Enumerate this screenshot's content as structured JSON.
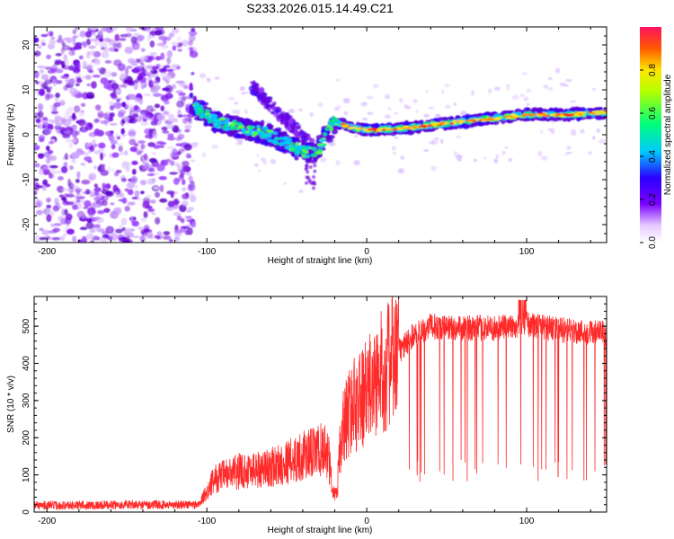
{
  "title": "S233.2026.015.14.49.C21",
  "chart_data": [
    {
      "type": "heatmap",
      "xlabel": "Height of straight line (km)",
      "ylabel": "Frequency (Hz)",
      "xlim": [
        -208,
        150
      ],
      "ylim": [
        -24,
        24
      ],
      "xticks": [
        -200,
        -100,
        0,
        100
      ],
      "xtick_labels": [
        "-200",
        "-100",
        "0",
        "100"
      ],
      "yticks": [
        -20,
        -10,
        0,
        10,
        20
      ],
      "ytick_labels": [
        "-20",
        "-10",
        "0",
        "10",
        "20"
      ],
      "colorbar": {
        "label": "Normalized spectral amplitude",
        "range": [
          0,
          1
        ],
        "ticks": [
          0,
          0.2,
          0.4,
          0.6,
          0.8
        ],
        "tick_labels": [
          "0.0",
          "0.2",
          "0.4",
          "0.6",
          "0.8"
        ]
      },
      "ridge": {
        "description_points_x": [
          -110,
          -95,
          -80,
          -65,
          -55,
          -45,
          -35,
          -30,
          -25,
          -20,
          -10,
          0,
          25,
          50,
          75,
          100,
          125,
          150
        ],
        "description_points_y": [
          7,
          3,
          1.5,
          0.5,
          -1,
          -3,
          -4,
          -3,
          0,
          3,
          1.5,
          1,
          1.5,
          2.5,
          3.5,
          4.5,
          4.5,
          5
        ]
      }
    },
    {
      "type": "line",
      "xlabel": "Height of straight line (km)",
      "ylabel": "SNR (10 * v/v)",
      "xlim": [
        -208,
        150
      ],
      "ylim": [
        0,
        580
      ],
      "xticks": [
        -200,
        -100,
        0,
        100
      ],
      "xtick_labels": [
        "-200",
        "-100",
        "0",
        "100"
      ],
      "yticks": [
        0,
        100,
        200,
        300,
        400,
        500
      ],
      "ytick_labels": [
        "0",
        "100",
        "200",
        "300",
        "400",
        "500"
      ],
      "series": [
        {
          "name": "SNR",
          "color": "#ff2a2a",
          "envelope_x": [
            -208,
            -105,
            -95,
            -80,
            -60,
            -40,
            -25,
            -20,
            -15,
            -10,
            0,
            10,
            20,
            30,
            40,
            60,
            80,
            100,
            120,
            150
          ],
          "envelope_mean": [
            18,
            20,
            90,
            110,
            120,
            150,
            170,
            50,
            230,
            280,
            320,
            380,
            430,
            480,
            500,
            495,
            495,
            505,
            490,
            480
          ]
        }
      ]
    }
  ]
}
